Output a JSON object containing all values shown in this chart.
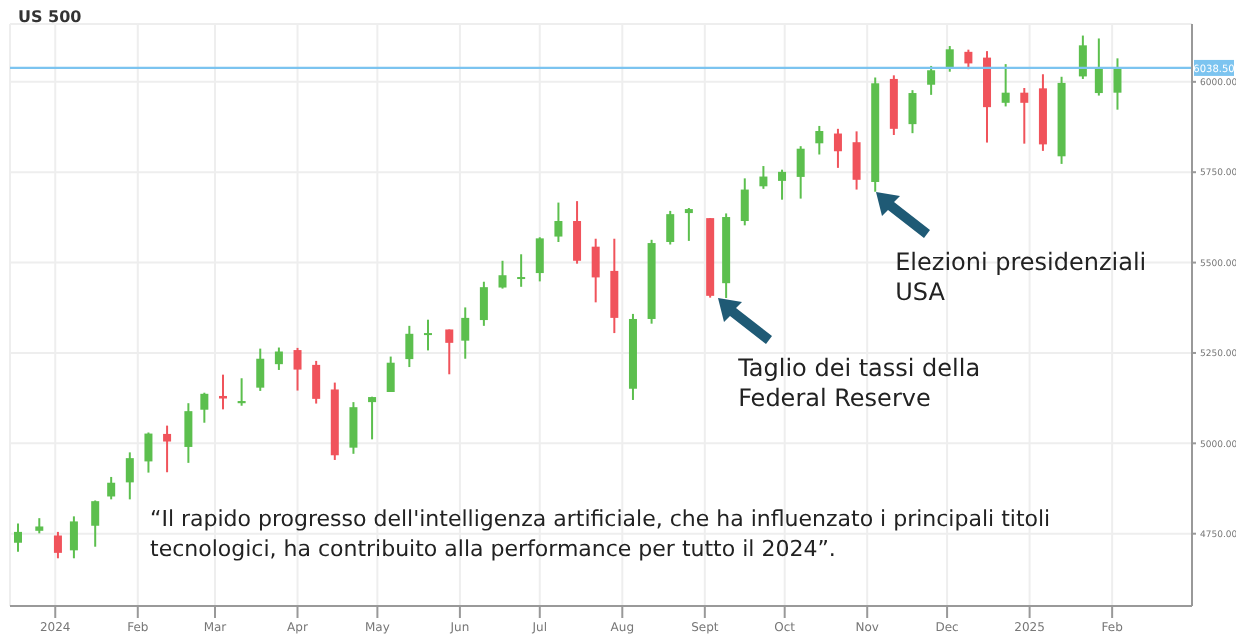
{
  "chart_data": {
    "type": "candlestick",
    "title": "US 500",
    "x": [
      "2023-12-18",
      "2023-12-26",
      "2024-01-02",
      "2024-01-08",
      "2024-01-16",
      "2024-01-22",
      "2024-01-29",
      "2024-02-05",
      "2024-02-12",
      "2024-02-20",
      "2024-02-26",
      "2024-03-04",
      "2024-03-11",
      "2024-03-18",
      "2024-03-25",
      "2024-04-01",
      "2024-04-08",
      "2024-04-15",
      "2024-04-22",
      "2024-04-29",
      "2024-05-06",
      "2024-05-13",
      "2024-05-20",
      "2024-05-28",
      "2024-06-03",
      "2024-06-10",
      "2024-06-17",
      "2024-06-24",
      "2024-07-01",
      "2024-07-08",
      "2024-07-15",
      "2024-07-22",
      "2024-07-29",
      "2024-08-05",
      "2024-08-12",
      "2024-08-19",
      "2024-08-26",
      "2024-09-03",
      "2024-09-09",
      "2024-09-16",
      "2024-09-23",
      "2024-09-30",
      "2024-10-07",
      "2024-10-14",
      "2024-10-21",
      "2024-10-28",
      "2024-11-04",
      "2024-11-11",
      "2024-11-18",
      "2024-11-25",
      "2024-12-02",
      "2024-12-09",
      "2024-12-16",
      "2024-12-23",
      "2024-12-30",
      "2025-01-06",
      "2025-01-13",
      "2025-01-21",
      "2025-01-27",
      "2025-02-03"
    ],
    "ohlc": [
      [
        4725,
        4778,
        4700,
        4755
      ],
      [
        4758,
        4793,
        4751,
        4770
      ],
      [
        4745,
        4755,
        4682,
        4697
      ],
      [
        4704,
        4798,
        4682,
        4784
      ],
      [
        4772,
        4842,
        4714,
        4840
      ],
      [
        4853,
        4907,
        4845,
        4891
      ],
      [
        4892,
        4975,
        4845,
        4959
      ],
      [
        4950,
        5030,
        4919,
        5027
      ],
      [
        5026,
        5049,
        4920,
        5005
      ],
      [
        4990,
        5111,
        4946,
        5089
      ],
      [
        5093,
        5140,
        5057,
        5137
      ],
      [
        5131,
        5190,
        5094,
        5124
      ],
      [
        5111,
        5180,
        5104,
        5117
      ],
      [
        5154,
        5262,
        5145,
        5234
      ],
      [
        5219,
        5265,
        5203,
        5254
      ],
      [
        5258,
        5264,
        5146,
        5204
      ],
      [
        5217,
        5228,
        5110,
        5123
      ],
      [
        5149,
        5168,
        4954,
        4967
      ],
      [
        4988,
        5114,
        4971,
        5100
      ],
      [
        5114,
        5129,
        5011,
        5128
      ],
      [
        5142,
        5240,
        5142,
        5223
      ],
      [
        5233,
        5325,
        5211,
        5303
      ],
      [
        5305,
        5342,
        5257,
        5305
      ],
      [
        5315,
        5315,
        5191,
        5278
      ],
      [
        5284,
        5376,
        5234,
        5347
      ],
      [
        5341,
        5447,
        5325,
        5432
      ],
      [
        5431,
        5505,
        5428,
        5465
      ],
      [
        5460,
        5523,
        5433,
        5460
      ],
      [
        5471,
        5570,
        5448,
        5567
      ],
      [
        5572,
        5666,
        5557,
        5615
      ],
      [
        5615,
        5670,
        5497,
        5505
      ],
      [
        5544,
        5566,
        5390,
        5459
      ],
      [
        5477,
        5566,
        5305,
        5347
      ],
      [
        5151,
        5358,
        5120,
        5344
      ],
      [
        5344,
        5563,
        5331,
        5554
      ],
      [
        5557,
        5643,
        5550,
        5634
      ],
      [
        5637,
        5651,
        5560,
        5648
      ],
      [
        5623,
        5623,
        5403,
        5408
      ],
      [
        5443,
        5636,
        5402,
        5626
      ],
      [
        5615,
        5733,
        5603,
        5702
      ],
      [
        5711,
        5767,
        5704,
        5738
      ],
      [
        5726,
        5757,
        5674,
        5751
      ],
      [
        5737,
        5822,
        5677,
        5815
      ],
      [
        5830,
        5878,
        5799,
        5864
      ],
      [
        5857,
        5870,
        5762,
        5808
      ],
      [
        5833,
        5863,
        5702,
        5729
      ],
      [
        5723,
        6012,
        5696,
        5996
      ],
      [
        6008,
        6018,
        5853,
        5870
      ],
      [
        5883,
        5977,
        5858,
        5969
      ],
      [
        5992,
        6044,
        5964,
        6032
      ],
      [
        6041,
        6099,
        6028,
        6090
      ],
      [
        6083,
        6089,
        6035,
        6051
      ],
      [
        6067,
        6085,
        5832,
        5930
      ],
      [
        5942,
        6049,
        5932,
        5970
      ],
      [
        5970,
        5983,
        5829,
        5942
      ],
      [
        5982,
        6021,
        5809,
        5827
      ],
      [
        5794,
        6014,
        5773,
        5997
      ],
      [
        6015,
        6128,
        6008,
        6101
      ],
      [
        5969,
        6120,
        5962,
        6041
      ],
      [
        5970,
        6065,
        5923,
        6038.5
      ]
    ],
    "colors": [
      "#5cbf4e",
      "#5cbf4e",
      "#f0535b",
      "#5cbf4e",
      "#5cbf4e",
      "#5cbf4e",
      "#5cbf4e",
      "#5cbf4e",
      "#f0535b",
      "#5cbf4e",
      "#5cbf4e",
      "#f0535b",
      "#5cbf4e",
      "#5cbf4e",
      "#5cbf4e",
      "#f0535b",
      "#f0535b",
      "#f0535b",
      "#5cbf4e",
      "#5cbf4e",
      "#5cbf4e",
      "#5cbf4e",
      "#5cbf4e",
      "#f0535b",
      "#5cbf4e",
      "#5cbf4e",
      "#5cbf4e",
      "#5cbf4e",
      "#5cbf4e",
      "#5cbf4e",
      "#f0535b",
      "#f0535b",
      "#f0535b",
      "#5cbf4e",
      "#5cbf4e",
      "#5cbf4e",
      "#5cbf4e",
      "#f0535b",
      "#5cbf4e",
      "#5cbf4e",
      "#5cbf4e",
      "#5cbf4e",
      "#5cbf4e",
      "#5cbf4e",
      "#f0535b",
      "#f0535b",
      "#5cbf4e",
      "#f0535b",
      "#5cbf4e",
      "#5cbf4e",
      "#5cbf4e",
      "#f0535b",
      "#f0535b",
      "#5cbf4e",
      "#f0535b",
      "#f0535b",
      "#5cbf4e",
      "#5cbf4e",
      "#5cbf4e",
      "#5cbf4e"
    ],
    "xlim": [
      "2023-12-15",
      "2025-03-03"
    ],
    "xticks": [
      {
        "value": "2024-01-01",
        "label": "2024"
      },
      {
        "value": "2024-02-01",
        "label": "Feb"
      },
      {
        "value": "2024-03-01",
        "label": "Mar"
      },
      {
        "value": "2024-04-01",
        "label": "Apr"
      },
      {
        "value": "2024-05-01",
        "label": "May"
      },
      {
        "value": "2024-06-01",
        "label": "Jun"
      },
      {
        "value": "2024-07-01",
        "label": "Jul"
      },
      {
        "value": "2024-08-01",
        "label": "Aug"
      },
      {
        "value": "2024-09-01",
        "label": "Sept"
      },
      {
        "value": "2024-10-01",
        "label": "Oct"
      },
      {
        "value": "2024-11-01",
        "label": "Nov"
      },
      {
        "value": "2024-12-01",
        "label": "Dec"
      },
      {
        "value": "2025-01-01",
        "label": "2025"
      },
      {
        "value": "2025-02-01",
        "label": "Feb"
      }
    ],
    "ylim": [
      4550,
      6160
    ],
    "yticks": [
      {
        "value": 4750,
        "label": "4750.00"
      },
      {
        "value": 5000,
        "label": "5000.00"
      },
      {
        "value": 5250,
        "label": "5250.00"
      },
      {
        "value": 5500,
        "label": "5500.00"
      },
      {
        "value": 5750,
        "label": "5750.00"
      },
      {
        "value": 6000,
        "label": "6000.00"
      }
    ],
    "grid": true,
    "ref_lines": [
      {
        "axis": "y",
        "value": 6038.5,
        "label": "6038.50",
        "color": "#7cc4f0"
      }
    ],
    "annotations": [
      {
        "text": "Elezioni presidenziali USA",
        "x": "2024-11-04",
        "y": 5696
      },
      {
        "text": "Taglio dei tassi della Federal Reserve",
        "x": "2024-09-06",
        "y": 5402
      },
      "“Il rapido progresso dell'intelligenza artificiale, che ha influenzato i principali titoli tecnologici, ha contribuito alla performance per tutto il 2024”."
    ]
  }
}
